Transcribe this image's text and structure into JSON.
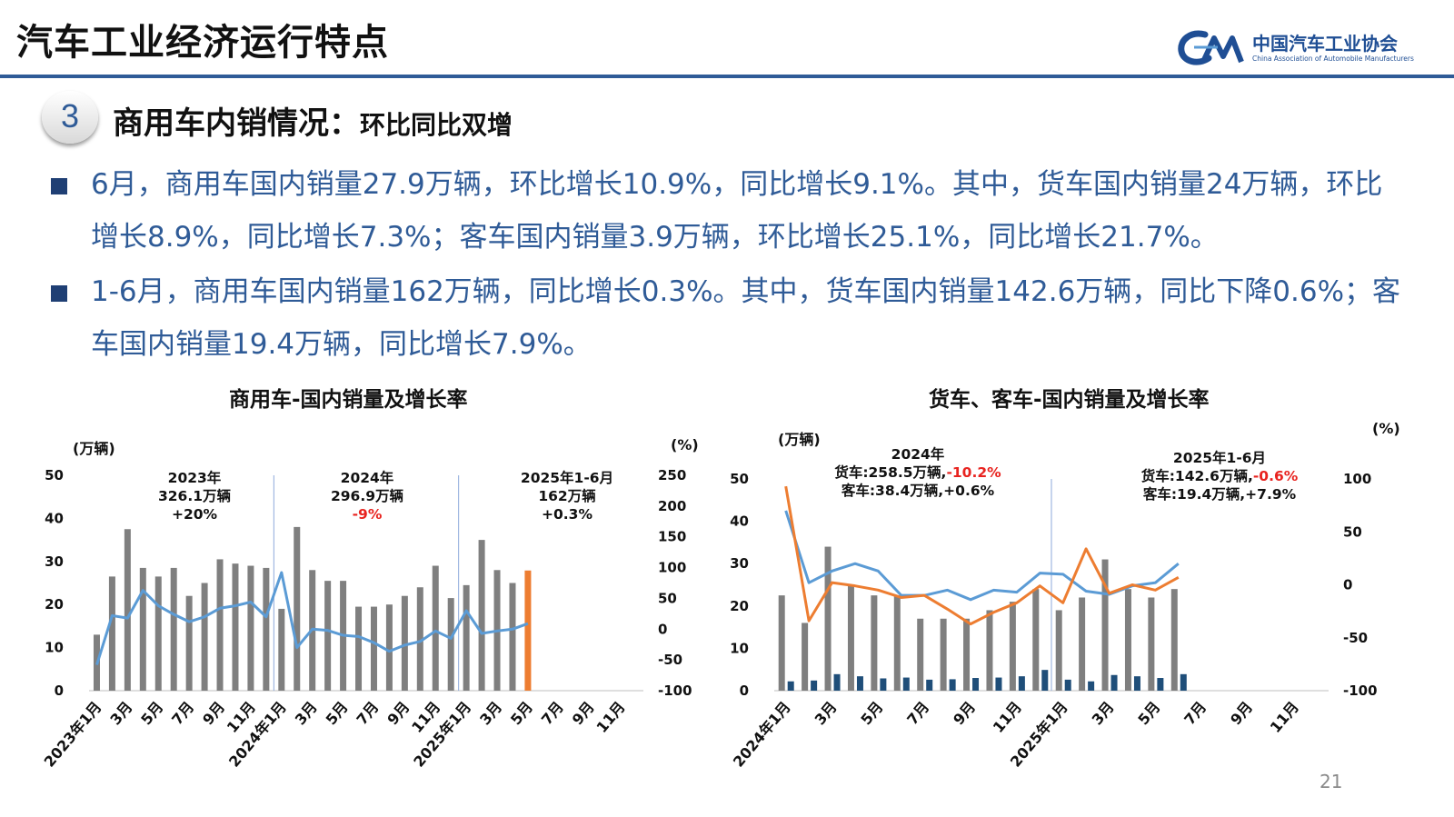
{
  "header": {
    "title": "汽车工业经济运行特点"
  },
  "logo": {
    "name_cn": "中国汽车工业协会",
    "name_en": "China Association of Automobile Manufacturers"
  },
  "section": {
    "number": "3",
    "title": "商用车内销情况：",
    "subtitle": "环比同比双增"
  },
  "bullets": [
    "6月，商用车国内销量27.9万辆，环比增长10.9%，同比增长9.1%。其中，货车国内销量24万辆，环比增长8.9%，同比增长7.3%；客车国内销量3.9万辆，环比增长25.1%，同比增长21.7%。",
    "1-6月，商用车国内销量162万辆，同比增长0.3%。其中，货车国内销量142.6万辆，同比下降0.6%；客车国内销量19.4万辆，同比增长7.9%。"
  ],
  "page_number": "21",
  "colors": {
    "brand": "#2f5b97",
    "bar": "#7f7f7f",
    "bar_highlight": "#ed7d31",
    "growth_line": "#5b9bd5",
    "truck_growth": "#ed7d31",
    "bus_bar": "#1f4e79",
    "negative": "#e8231f"
  },
  "chart_data": [
    {
      "type": "bar",
      "title": "商用车-国内销量及增长率",
      "y_unit": "(万辆)",
      "y2_unit": "(%)",
      "ylim": [
        0,
        50
      ],
      "y_ticks": [
        "0",
        "10",
        "20",
        "30",
        "40",
        "50"
      ],
      "y2lim": [
        -100,
        250
      ],
      "y2_ticks": [
        "-100",
        "-50",
        "0",
        "50",
        "100",
        "150",
        "200",
        "250"
      ],
      "x_tick_labels": [
        "2023年1月",
        "3月",
        "5月",
        "7月",
        "9月",
        "11月",
        "2024年1月",
        "3月",
        "5月",
        "7月",
        "9月",
        "11月",
        "2025年1月",
        "3月",
        "5月",
        "7月",
        "9月",
        "11月"
      ],
      "periods": [
        {
          "label": "2023年",
          "total": "326.1万辆",
          "change": "+20%",
          "negative": false
        },
        {
          "label": "2024年",
          "total": "296.9万辆",
          "change": "-9%",
          "negative": true
        },
        {
          "label": "2025年1-6月",
          "total": "162万辆",
          "change": "+0.3%",
          "negative": false
        }
      ],
      "series": [
        {
          "name": "国内销量",
          "axis": "left",
          "kind": "bar",
          "values": [
            13,
            26.5,
            37.5,
            28.5,
            26.5,
            28.5,
            22,
            25,
            30.5,
            29.5,
            29,
            28.5,
            19,
            38,
            28,
            25.5,
            25.5,
            19.5,
            19.5,
            20,
            22,
            24,
            29,
            21.5,
            24.5,
            35,
            28,
            25,
            27.9
          ]
        },
        {
          "name": "增长率",
          "axis": "right",
          "kind": "line",
          "values": [
            -58,
            22,
            18,
            63,
            38,
            24,
            12,
            20,
            34,
            38,
            44,
            20,
            92,
            -30,
            0,
            -2,
            -10,
            -12,
            -22,
            -36,
            -26,
            -20,
            -3,
            -15,
            30,
            -7,
            -3,
            0,
            9
          ]
        }
      ]
    },
    {
      "type": "bar",
      "title": "货车、客车-国内销量及增长率",
      "y_unit": "(万辆)",
      "y2_unit": "(%)",
      "ylim": [
        0,
        50
      ],
      "y_ticks": [
        "0",
        "10",
        "20",
        "30",
        "40",
        "50"
      ],
      "y2lim": [
        -100,
        100
      ],
      "y2_ticks": [
        "-100",
        "-50",
        "0",
        "50",
        "100"
      ],
      "x_tick_labels": [
        "2024年1月",
        "3月",
        "5月",
        "7月",
        "9月",
        "11月",
        "2025年1月",
        "3月",
        "5月",
        "7月",
        "9月",
        "11月"
      ],
      "annotations": [
        {
          "label": "2024年",
          "truck": "货车:258.5万辆,",
          "truck_change": "-10.2%",
          "bus": "客车:38.4万辆,+0.6%"
        },
        {
          "label": "2025年1-6月",
          "truck": "货车:142.6万辆,",
          "truck_change": "-0.6%",
          "bus": "客车:19.4万辆,+7.9%"
        }
      ],
      "series": [
        {
          "name": "货车",
          "axis": "left",
          "kind": "bar",
          "values": [
            22.5,
            16,
            34,
            25,
            22.5,
            22.5,
            17,
            17,
            17,
            19,
            21,
            24,
            19,
            22,
            31,
            24,
            22,
            24
          ]
        },
        {
          "name": "客车",
          "axis": "left",
          "kind": "bar",
          "values": [
            2.2,
            2.4,
            3.9,
            3.4,
            2.9,
            3.1,
            2.6,
            2.7,
            3.0,
            3.1,
            3.4,
            4.9,
            2.6,
            2.2,
            3.7,
            3.4,
            3.0,
            3.9
          ]
        },
        {
          "name": "客车增长率",
          "axis": "right",
          "kind": "line",
          "values": [
            70,
            2,
            13,
            20,
            13,
            -10,
            -10,
            -5,
            -14,
            -5,
            -7,
            11,
            10,
            -6,
            -9,
            -1,
            2,
            20
          ]
        },
        {
          "name": "货车增长率",
          "axis": "right",
          "kind": "line",
          "values": [
            93,
            -34,
            2,
            -1,
            -5,
            -12,
            -10,
            -23,
            -37,
            -26,
            -17,
            -1,
            -17,
            34,
            -8,
            0,
            -5,
            7
          ]
        }
      ]
    }
  ]
}
